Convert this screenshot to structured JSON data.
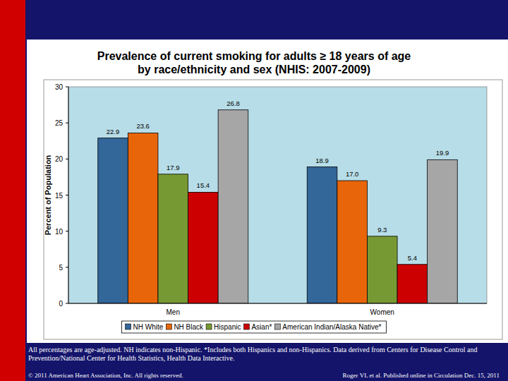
{
  "chart_data": {
    "type": "bar",
    "title": "Prevalence of current smoking for adults ≥ 18 years of age by race/ethnicity and sex (NHIS: 2007-2009)",
    "y_label": "Percent of Population",
    "categories": [
      "Men",
      "Women"
    ],
    "series": [
      {
        "name": "NH White",
        "color": "#336699",
        "values": [
          22.9,
          18.9
        ],
        "value_labels": [
          "22.9",
          "18.9"
        ]
      },
      {
        "name": "NH Black",
        "color": "#e8650a",
        "values": [
          23.6,
          17.0
        ],
        "value_labels": [
          "23.6",
          "17.0"
        ]
      },
      {
        "name": "Hispanic",
        "color": "#779933",
        "values": [
          17.9,
          9.3
        ],
        "value_labels": [
          "17.9",
          "9.3"
        ]
      },
      {
        "name": "Asian*",
        "color": "#cc0000",
        "values": [
          15.4,
          5.4
        ],
        "value_labels": [
          "15.4",
          "5.4"
        ]
      },
      {
        "name": "American Indian/Alaska Native*",
        "color": "#a6a6a6",
        "values": [
          26.8,
          19.9
        ],
        "value_labels": [
          "26.8",
          "19.9"
        ]
      }
    ],
    "ylim": [
      0,
      30
    ],
    "yticks": [
      0,
      5,
      10,
      15,
      20,
      25,
      30
    ],
    "grid": false,
    "data_labels": true,
    "legend": "bottom",
    "footnote": "All percentages are age-adjusted. NH indicates non-Hispanic. *Includes both Hispanics and non-Hispanics. Data derived from Centers for Disease Control and Prevention/National Center for Health Statistics, Health Data Interactive.",
    "copyright": "© 2011 American Heart Association, Inc. All rights reserved.",
    "citation": "Roger VL et al. Published online in Circulation Dec. 15, 2011"
  }
}
